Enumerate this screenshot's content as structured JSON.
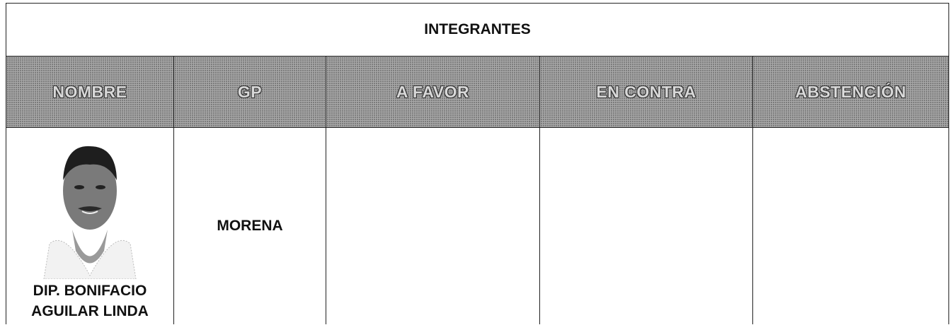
{
  "table": {
    "title": "INTEGRANTES",
    "headers": [
      "NOMBRE",
      "GP",
      "A FAVOR",
      "EN CONTRA",
      "ABSTENCIÓN"
    ],
    "rows": [
      [
        "DIP. BONIFACIO AGUILAR LINDA",
        "MORENA"
      ]
    ]
  }
}
